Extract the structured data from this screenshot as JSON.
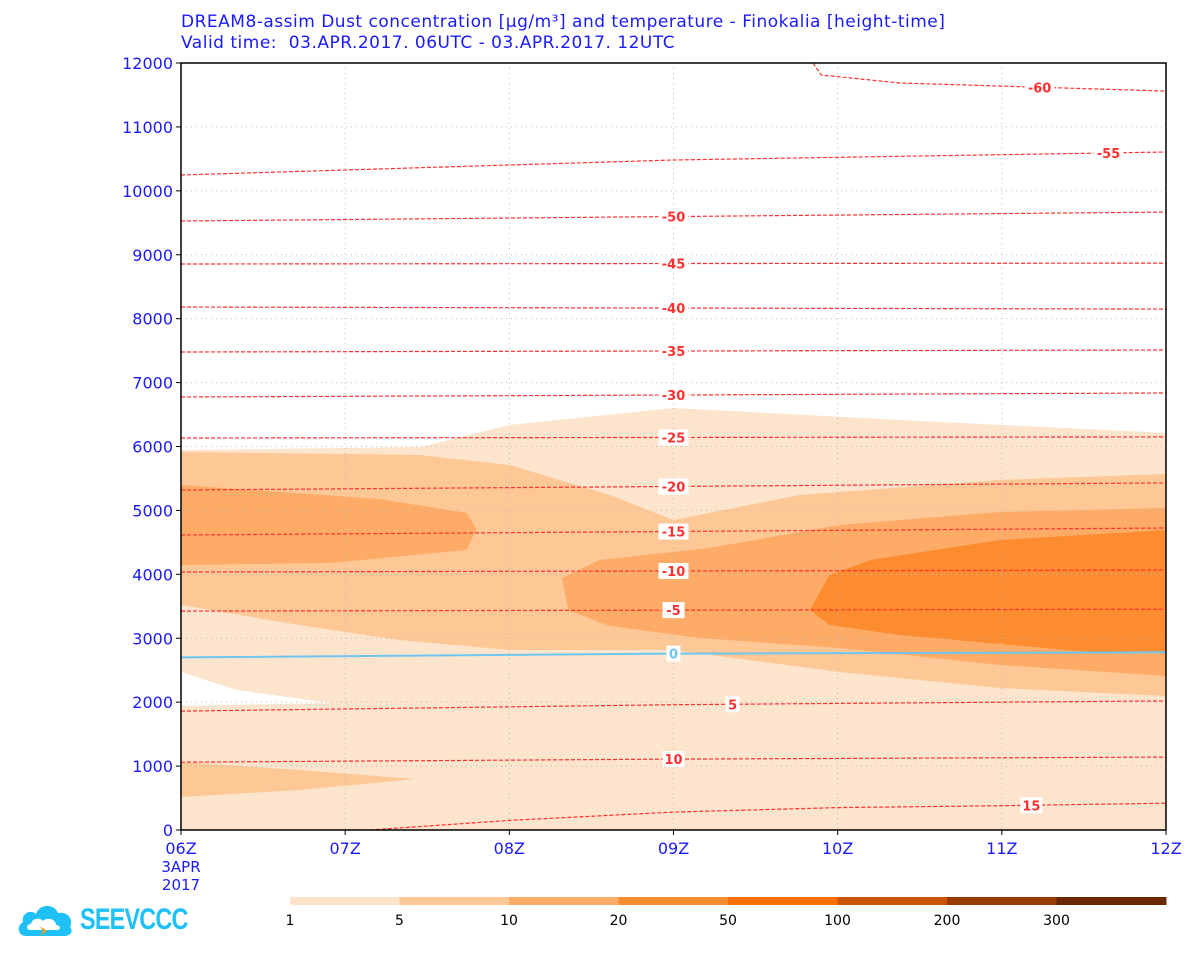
{
  "chart_data": {
    "type": "heatmap",
    "title": "DREAM8-assim Dust concentration [µg/m³] and temperature - Finokalia [height-time]",
    "subtitle": "Valid time:  03.APR.2017. 06UTC - 03.APR.2017. 12UTC",
    "xlabel": "",
    "ylabel": "",
    "xlim": [
      6,
      12
    ],
    "ylim": [
      0,
      12000
    ],
    "grid": true,
    "x_ticks": [
      {
        "value": 6,
        "label": "06Z"
      },
      {
        "value": 7,
        "label": "07Z"
      },
      {
        "value": 8,
        "label": "08Z"
      },
      {
        "value": 9,
        "label": "09Z"
      },
      {
        "value": 10,
        "label": "10Z"
      },
      {
        "value": 11,
        "label": "11Z"
      },
      {
        "value": 12,
        "label": "12Z"
      }
    ],
    "x_date_label": [
      "3APR",
      "2017"
    ],
    "y_ticks": [
      0,
      1000,
      2000,
      3000,
      4000,
      5000,
      6000,
      7000,
      8000,
      9000,
      10000,
      11000,
      12000
    ],
    "colorbar": {
      "levels": [
        "1",
        "5",
        "10",
        "20",
        "50",
        "100",
        "200",
        "300"
      ],
      "colors": [
        "#fde4cc",
        "#fdc896",
        "#fdab67",
        "#fd8c30",
        "#ff6f00",
        "#cc5500",
        "#9a3c00",
        "#6a2800"
      ],
      "placement": "bottom"
    },
    "dust_regions": [
      {
        "level": 0,
        "points": [
          [
            6,
            5945
          ],
          [
            7.46,
            5992
          ],
          [
            8,
            6336
          ],
          [
            9,
            6602
          ],
          [
            10.38,
            6414
          ],
          [
            12,
            6211
          ],
          [
            12,
            0
          ],
          [
            6,
            0
          ]
        ]
      },
      {
        "level": -1,
        "points": [
          [
            6,
            2472
          ],
          [
            6.15,
            2347
          ],
          [
            6.34,
            2190
          ],
          [
            6.91,
            1987
          ],
          [
            6,
            1940
          ]
        ]
      },
      {
        "level": 1,
        "points": [
          [
            6,
            5914
          ],
          [
            7.46,
            5867
          ],
          [
            8,
            5710
          ],
          [
            8.61,
            5241
          ],
          [
            9,
            4850
          ],
          [
            9.77,
            5241
          ],
          [
            10.99,
            5476
          ],
          [
            12,
            5570
          ],
          [
            12,
            2096
          ],
          [
            10.99,
            2222
          ],
          [
            10.01,
            2472
          ],
          [
            9,
            2816
          ],
          [
            8,
            2816
          ],
          [
            7.33,
            2973
          ],
          [
            6.72,
            3207
          ],
          [
            6,
            3520
          ]
        ]
      },
      {
        "level": 1,
        "points": [
          [
            6,
            1064
          ],
          [
            6.72,
            939
          ],
          [
            7.43,
            798
          ],
          [
            6.72,
            626
          ],
          [
            6,
            516
          ]
        ]
      },
      {
        "level": 2,
        "points": [
          [
            6,
            5398
          ],
          [
            7.21,
            5178
          ],
          [
            7.74,
            4959
          ],
          [
            7.8,
            4709
          ],
          [
            7.74,
            4381
          ],
          [
            6.91,
            4177
          ],
          [
            6,
            4146
          ]
        ]
      },
      {
        "level": 2,
        "points": [
          [
            8.32,
            3943
          ],
          [
            8.55,
            4224
          ],
          [
            9.22,
            4412
          ],
          [
            10.01,
            4772
          ],
          [
            10.99,
            4975
          ],
          [
            12,
            5038
          ],
          [
            12,
            2409
          ],
          [
            10.99,
            2581
          ],
          [
            10.01,
            2847
          ],
          [
            9.16,
            3004
          ],
          [
            8.61,
            3192
          ],
          [
            8.36,
            3442
          ]
        ]
      },
      {
        "level": 3,
        "points": [
          [
            9.83,
            3442
          ],
          [
            9.95,
            3989
          ],
          [
            10.2,
            4224
          ],
          [
            10.99,
            4537
          ],
          [
            12,
            4694
          ],
          [
            12,
            2785
          ],
          [
            11.54,
            2785
          ],
          [
            10.38,
            3051
          ],
          [
            9.95,
            3207
          ]
        ]
      }
    ],
    "temperature_contours": [
      {
        "label": "15",
        "label_at": 11.18,
        "points": [
          [
            7.15,
            0
          ],
          [
            8,
            150
          ],
          [
            9,
            280
          ],
          [
            10,
            350
          ],
          [
            11,
            380
          ],
          [
            12,
            420
          ]
        ]
      },
      {
        "label": "10",
        "label_at": 9.0,
        "points": [
          [
            6,
            1060
          ],
          [
            9,
            1110
          ],
          [
            12,
            1140
          ]
        ]
      },
      {
        "label": "5",
        "label_at": 9.36,
        "points": [
          [
            6,
            1860
          ],
          [
            9,
            1960
          ],
          [
            12,
            2020
          ]
        ]
      },
      {
        "label": "0",
        "label_at": 9.0,
        "freezing": true,
        "points": [
          [
            6,
            2700
          ],
          [
            9,
            2760
          ],
          [
            12,
            2780
          ]
        ]
      },
      {
        "label": "-5",
        "label_at": 9.0,
        "points": [
          [
            6,
            3425
          ],
          [
            12,
            3455
          ]
        ]
      },
      {
        "label": "-10",
        "label_at": 9.0,
        "points": [
          [
            6,
            4036
          ],
          [
            12,
            4068
          ]
        ]
      },
      {
        "label": "-15",
        "label_at": 9.0,
        "points": [
          [
            6,
            4615
          ],
          [
            12,
            4725
          ]
        ]
      },
      {
        "label": "-20",
        "label_at": 9.0,
        "points": [
          [
            6,
            5320
          ],
          [
            12,
            5430
          ]
        ]
      },
      {
        "label": "-25",
        "label_at": 9.0,
        "points": [
          [
            6,
            6133
          ],
          [
            12,
            6150
          ]
        ]
      },
      {
        "label": "-30",
        "label_at": 9.0,
        "points": [
          [
            6,
            6774
          ],
          [
            12,
            6837
          ]
        ]
      },
      {
        "label": "-35",
        "label_at": 9.0,
        "points": [
          [
            6,
            7478
          ],
          [
            12,
            7510
          ]
        ]
      },
      {
        "label": "-40",
        "label_at": 9.0,
        "points": [
          [
            6,
            8182
          ],
          [
            12,
            8150
          ]
        ]
      },
      {
        "label": "-45",
        "label_at": 9.0,
        "points": [
          [
            6,
            8855
          ],
          [
            12,
            8870
          ]
        ]
      },
      {
        "label": "-50",
        "label_at": 9.0,
        "points": [
          [
            6,
            9528
          ],
          [
            12,
            9668
          ]
        ]
      },
      {
        "label": "-55",
        "label_at": 11.65,
        "points": [
          [
            6,
            10248
          ],
          [
            9,
            10482
          ],
          [
            12,
            10607
          ]
        ]
      },
      {
        "label": "-60",
        "label_at": 11.23,
        "points": [
          [
            9.85,
            12000
          ],
          [
            9.9,
            11812
          ],
          [
            10.38,
            11687
          ],
          [
            12,
            11560
          ]
        ]
      }
    ]
  },
  "logo": {
    "text": "SEEVCCC"
  }
}
